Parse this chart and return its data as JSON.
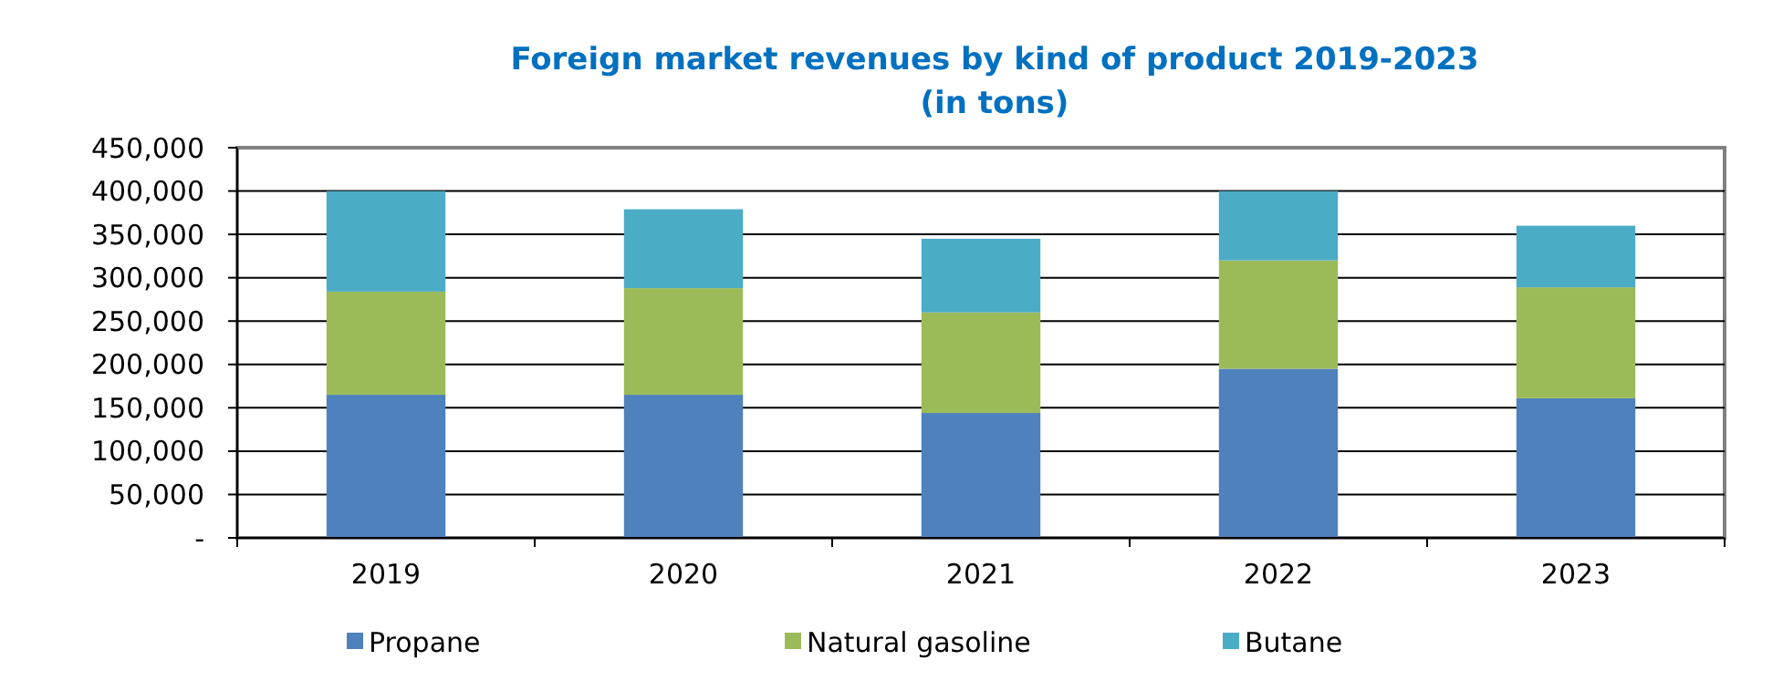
{
  "chart_data": {
    "type": "bar",
    "title": "Foreign market revenues by kind of product 2019-2023",
    "subtitle": "(in tons)",
    "categories": [
      "2019",
      "2020",
      "2021",
      "2022",
      "2023"
    ],
    "stacked": true,
    "series": [
      {
        "name": "Propane",
        "color": "#4f81bd",
        "values": [
          165000,
          165000,
          144000,
          195000,
          161000
        ]
      },
      {
        "name": "Natural gasoline",
        "color": "#9bbb59",
        "values": [
          119000,
          123000,
          116000,
          125000,
          128000
        ]
      },
      {
        "name": "Butane",
        "color": "#4bacc6",
        "values": [
          116000,
          91000,
          85000,
          80000,
          71000
        ]
      }
    ],
    "ylim": [
      0,
      450000
    ],
    "yticks": [
      {
        "value": 0,
        "label": "-"
      },
      {
        "value": 50000,
        "label": "50,000"
      },
      {
        "value": 100000,
        "label": "100,000"
      },
      {
        "value": 150000,
        "label": "150,000"
      },
      {
        "value": 200000,
        "label": "200,000"
      },
      {
        "value": 250000,
        "label": "250,000"
      },
      {
        "value": 300000,
        "label": "300,000"
      },
      {
        "value": 350000,
        "label": "350,000"
      },
      {
        "value": 400000,
        "label": "400,000"
      },
      {
        "value": 450000,
        "label": "450,000"
      }
    ],
    "grid": "y",
    "legend": "bottom"
  }
}
